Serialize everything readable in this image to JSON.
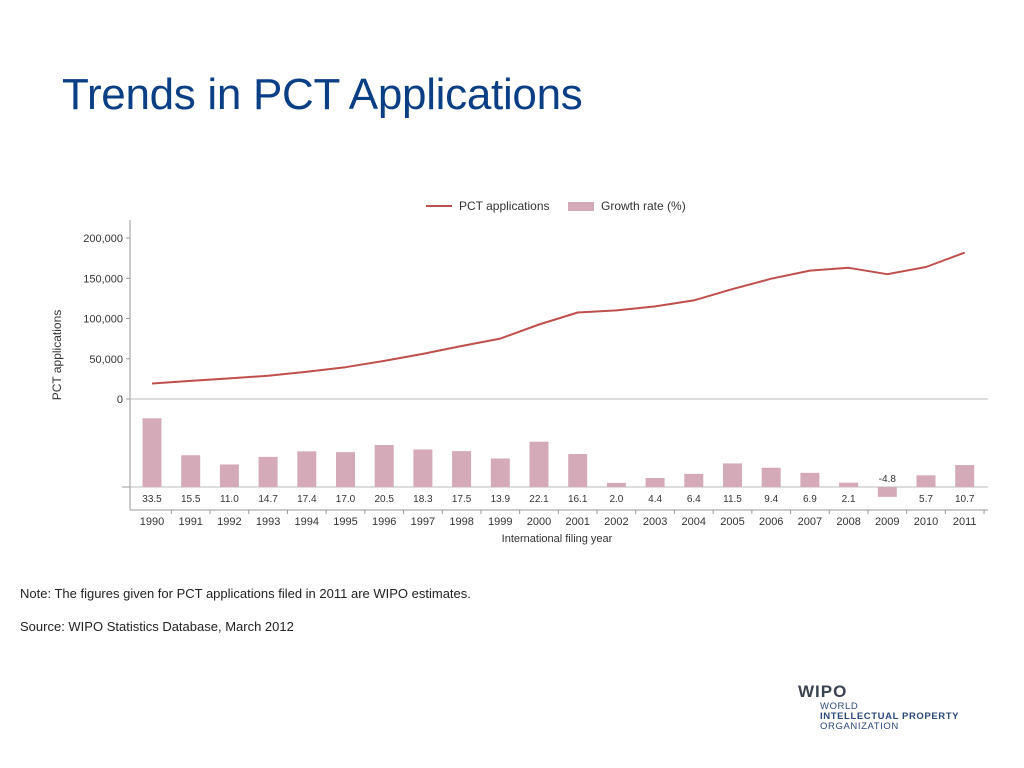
{
  "slide": {
    "title": "Trends in PCT Applications",
    "note": "Note: The figures given for PCT applications filed in 2011 are WIPO estimates.",
    "source": "Source: WIPO Statistics Database, March 2012"
  },
  "logo": {
    "word": "WIPO",
    "line1": "WORLD",
    "line2": "INTELLECTUAL PROPERTY",
    "line3": "ORGANIZATION"
  },
  "colors": {
    "title": "#0a3f86",
    "line": "#c0504d",
    "bar": "#d4a9b8",
    "axis": "#999999"
  },
  "chart_data": {
    "type": "bar+line",
    "title": "",
    "xlabel": "International filing year",
    "ylabel": "PCT applications",
    "ylim": [
      0,
      200000
    ],
    "yticks": [
      "0",
      "50,000",
      "100,000",
      "150,000",
      "200,000"
    ],
    "legend": {
      "placement": "top-center",
      "line_label": "PCT applications",
      "bar_label": "Growth rate (%)"
    },
    "categories": [
      "1990",
      "1991",
      "1992",
      "1993",
      "1994",
      "1995",
      "1996",
      "1997",
      "1998",
      "1999",
      "2000",
      "2001",
      "2002",
      "2003",
      "2004",
      "2005",
      "2006",
      "2007",
      "2008",
      "2009",
      "2010",
      "2011"
    ],
    "series": [
      {
        "name": "PCT applications",
        "kind": "line",
        "values": [
          19200,
          22500,
          25600,
          28800,
          33800,
          39500,
          47300,
          56000,
          65800,
          75000,
          92500,
          107500,
          110000,
          115000,
          122500,
          136500,
          149500,
          159500,
          163000,
          155000,
          164000,
          181900
        ]
      },
      {
        "name": "Growth rate (%)",
        "kind": "bar",
        "values": [
          33.5,
          15.5,
          11.0,
          14.7,
          17.4,
          17.0,
          20.5,
          18.3,
          17.5,
          13.9,
          22.1,
          16.1,
          2.0,
          4.4,
          6.4,
          11.5,
          9.4,
          6.9,
          2.1,
          -4.8,
          5.7,
          10.7
        ],
        "labels": [
          "33.5",
          "15.5",
          "11.0",
          "14.7",
          "17.4",
          "17.0",
          "20.5",
          "18.3",
          "17.5",
          "13.9",
          "22.1",
          "16.1",
          "2.0",
          "4.4",
          "6.4",
          "11.5",
          "9.4",
          "6.9",
          "2.1",
          "-4.8",
          "5.7",
          "10.7"
        ]
      }
    ]
  }
}
